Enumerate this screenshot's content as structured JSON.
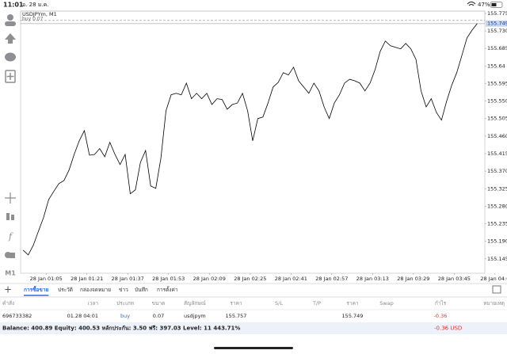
{
  "status_bar": {
    "time": "11:01",
    "date": "อ. 28 ม.ค.",
    "battery": "47%"
  },
  "sidebar": {
    "timeframe": "M1"
  },
  "chart_data": {
    "type": "line",
    "title": "USDJPYm, M1",
    "buy_label": "buy 0.07",
    "color": "#000000",
    "grid": false,
    "current_price": 155.749,
    "xlim": [
      55,
      237
    ],
    "ylim": [
      155.108,
      155.781
    ],
    "xticks": [
      {
        "value": 65,
        "label": "28 Jan 01:05"
      },
      {
        "value": 81,
        "label": "28 Jan 01:21"
      },
      {
        "value": 97,
        "label": "28 Jan 01:37"
      },
      {
        "value": 113,
        "label": "28 Jan 01:53"
      },
      {
        "value": 129,
        "label": "28 Jan 02:09"
      },
      {
        "value": 145,
        "label": "28 Jan 02:25"
      },
      {
        "value": 161,
        "label": "28 Jan 02:41"
      },
      {
        "value": 177,
        "label": "28 Jan 02:57"
      },
      {
        "value": 193,
        "label": "28 Jan 03:13"
      },
      {
        "value": 209,
        "label": "28 Jan 03:29"
      },
      {
        "value": 225,
        "label": "28 Jan 03:45"
      },
      {
        "value": 241,
        "label": "28 Jan 04:0"
      }
    ],
    "yticks": [
      155.775,
      {
        "value": 155.73,
        "label": "155.730"
      },
      155.685,
      155.64,
      155.595,
      {
        "value": 155.55,
        "label": "155.550"
      },
      155.505,
      {
        "value": 155.46,
        "label": "155.460"
      },
      155.415,
      {
        "value": 155.37,
        "label": "155.370"
      },
      155.325,
      {
        "value": 155.28,
        "label": "155.280"
      },
      155.235,
      {
        "value": 155.19,
        "label": "155.190"
      },
      155.145
    ],
    "x": [
      56,
      58,
      60,
      62,
      64,
      66,
      68,
      70,
      72,
      74,
      76,
      78,
      80,
      82,
      84,
      86,
      88,
      90,
      92,
      94,
      96,
      98,
      100,
      102,
      104,
      106,
      108,
      110,
      112,
      114,
      116,
      118,
      120,
      122,
      124,
      126,
      128,
      130,
      132,
      134,
      136,
      138,
      140,
      142,
      144,
      146,
      148,
      150,
      152,
      154,
      156,
      158,
      160,
      162,
      164,
      166,
      168,
      170,
      172,
      174,
      176,
      178,
      180,
      182,
      184,
      186,
      188,
      190,
      192,
      194,
      196,
      198,
      200,
      202,
      204,
      206,
      208,
      210,
      212,
      214,
      216,
      218,
      220,
      222,
      224,
      226,
      228,
      230,
      232,
      234
    ],
    "values": [
      155.167,
      155.155,
      155.18,
      155.216,
      155.251,
      155.297,
      155.318,
      155.338,
      155.346,
      155.373,
      155.413,
      155.448,
      155.474,
      155.411,
      155.413,
      155.428,
      155.407,
      155.444,
      155.413,
      155.387,
      155.413,
      155.312,
      155.322,
      155.393,
      155.423,
      155.332,
      155.326,
      155.403,
      155.525,
      155.566,
      155.57,
      155.566,
      155.596,
      155.556,
      155.57,
      155.556,
      155.57,
      155.541,
      155.556,
      155.554,
      155.529,
      155.541,
      155.545,
      155.57,
      155.525,
      155.448,
      155.505,
      155.509,
      155.545,
      155.586,
      155.598,
      155.623,
      155.617,
      155.637,
      155.602,
      155.586,
      155.57,
      155.596,
      155.576,
      155.535,
      155.505,
      155.545,
      155.566,
      155.596,
      155.606,
      155.602,
      155.596,
      155.576,
      155.596,
      155.631,
      155.678,
      155.704,
      155.692,
      155.688,
      155.684,
      155.698,
      155.684,
      155.657,
      155.576,
      155.535,
      155.556,
      155.521,
      155.501,
      155.549,
      155.59,
      155.623,
      155.667,
      155.712,
      155.732,
      155.749
    ]
  },
  "tabs": {
    "items": [
      "การซื้อขาย",
      "ประวัติ",
      "กล่องจดหมาย",
      "ข่าว",
      "บันทึก",
      "การตั้งค่า"
    ],
    "active": 0
  },
  "table": {
    "headers": [
      "คำสั่ง",
      "เวลา",
      "ประเภท",
      "ขนาด",
      "สัญลักษณ์",
      "ราคา",
      "S/L",
      "T/P",
      "ราคา",
      "Swap",
      "กำไร",
      "หมายเหตุ"
    ],
    "rows": [
      [
        "696733382",
        "01.28 04:01",
        "buy",
        "0.07",
        "usdjpym",
        "155.757",
        null,
        null,
        "155.749",
        null,
        "-0.36",
        null
      ]
    ],
    "summary": "Balance: 400.89 Equity: 400.53 หลักประกัน: 3.50 ฟรี: 397.03 Level: 11 443.71%",
    "total_profit": "-0.36  USD"
  }
}
